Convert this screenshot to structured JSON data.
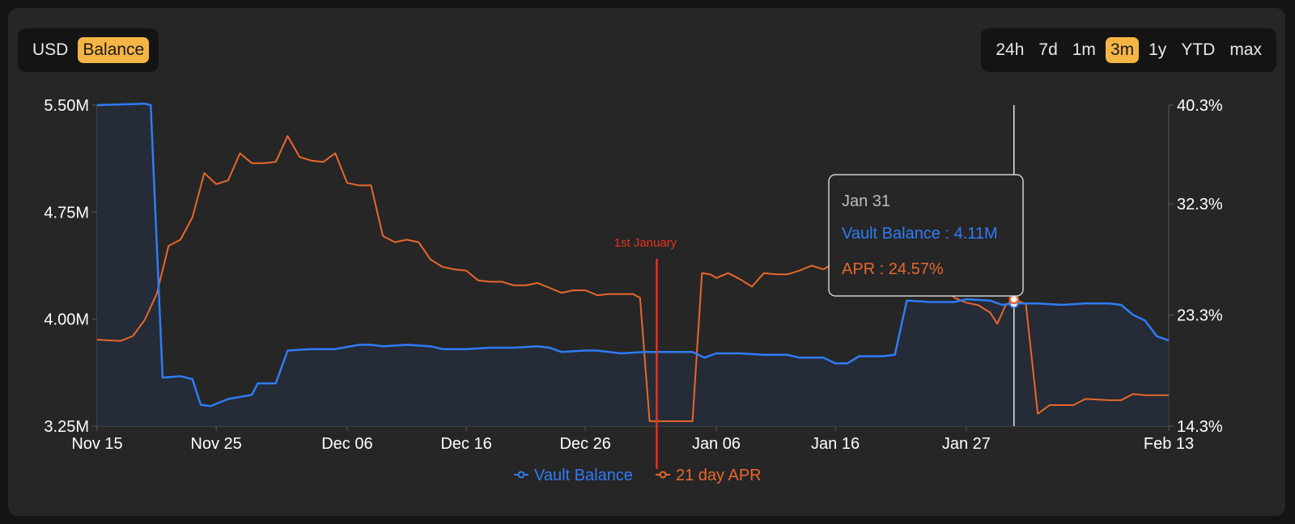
{
  "unit_toggle": {
    "options": [
      "USD",
      "Balance"
    ],
    "selected": "Balance",
    "accent": "#f5b545"
  },
  "range_toggle": {
    "options": [
      "24h",
      "7d",
      "1m",
      "3m",
      "1y",
      "YTD",
      "max"
    ],
    "selected": "3m"
  },
  "colors": {
    "balance": "#2f7cf6",
    "apr": "#e8672c",
    "annotation": "#e8321f",
    "area": "#252b37"
  },
  "tooltip": {
    "date": "Jan 31",
    "balance_text": "Vault Balance : 4.11M",
    "apr_text": "APR : 24.57%"
  },
  "chart_data": {
    "type": "line",
    "x_start": "2023-11-15",
    "x_end": "2024-02-13",
    "x_ticks": [
      {
        "date": "2023-11-15",
        "label": "Nov 15"
      },
      {
        "date": "2023-11-25",
        "label": "Nov 25"
      },
      {
        "date": "2023-12-06",
        "label": "Dec 06"
      },
      {
        "date": "2023-12-16",
        "label": "Dec 16"
      },
      {
        "date": "2023-12-26",
        "label": "Dec 26"
      },
      {
        "date": "2024-01-06",
        "label": "Jan 06"
      },
      {
        "date": "2024-01-16",
        "label": "Jan 16"
      },
      {
        "date": "2024-01-27",
        "label": "Jan 27"
      },
      {
        "date": "2024-02-13",
        "label": "Feb 13"
      }
    ],
    "y_left": {
      "min": 3.25,
      "max": 5.5,
      "ticks": [
        {
          "v": 5.5,
          "label": "5.50M"
        },
        {
          "v": 4.75,
          "label": "4.75M"
        },
        {
          "v": 4.0,
          "label": "4.00M"
        },
        {
          "v": 3.25,
          "label": "3.25M"
        }
      ]
    },
    "y_right": {
      "min": 14.3,
      "max": 40.3,
      "ticks": [
        {
          "v": 40.3,
          "label": "40.3%"
        },
        {
          "v": 32.3,
          "label": "32.3%"
        },
        {
          "v": 23.3,
          "label": "23.3%"
        },
        {
          "v": 14.3,
          "label": "14.3%"
        }
      ]
    },
    "annotation": {
      "date": "2024-01-01",
      "label": "1st January"
    },
    "hover_date": "2024-01-31",
    "series": [
      {
        "name": "Vault Balance",
        "axis": "left",
        "area": true,
        "points": [
          [
            "2023-11-15",
            5.5
          ],
          [
            "2023-11-19",
            5.51
          ],
          [
            "2023-11-19.5",
            5.5
          ],
          [
            "2023-11-20.5",
            3.59
          ],
          [
            "2023-11-22",
            3.6
          ],
          [
            "2023-11-23",
            3.58
          ],
          [
            "2023-11-23.7",
            3.4
          ],
          [
            "2023-11-24.5",
            3.39
          ],
          [
            "2023-11-26",
            3.44
          ],
          [
            "2023-11-28",
            3.47
          ],
          [
            "2023-11-28.5",
            3.55
          ],
          [
            "2023-11-30",
            3.55
          ],
          [
            "2023-12-01",
            3.78
          ],
          [
            "2023-12-03",
            3.79
          ],
          [
            "2023-12-05",
            3.79
          ],
          [
            "2023-12-07",
            3.82
          ],
          [
            "2023-12-08",
            3.82
          ],
          [
            "2023-12-09",
            3.81
          ],
          [
            "2023-12-11",
            3.82
          ],
          [
            "2023-12-13",
            3.81
          ],
          [
            "2023-12-14",
            3.79
          ],
          [
            "2023-12-16",
            3.79
          ],
          [
            "2023-12-18",
            3.8
          ],
          [
            "2023-12-20",
            3.8
          ],
          [
            "2023-12-22",
            3.81
          ],
          [
            "2023-12-23",
            3.8
          ],
          [
            "2023-12-24",
            3.77
          ],
          [
            "2023-12-26",
            3.78
          ],
          [
            "2023-12-27",
            3.78
          ],
          [
            "2023-12-29",
            3.76
          ],
          [
            "2023-12-31",
            3.77
          ],
          [
            "2024-01-02",
            3.77
          ],
          [
            "2024-01-04",
            3.77
          ],
          [
            "2024-01-05",
            3.73
          ],
          [
            "2024-01-06",
            3.76
          ],
          [
            "2024-01-08",
            3.76
          ],
          [
            "2024-01-10",
            3.75
          ],
          [
            "2024-01-12",
            3.75
          ],
          [
            "2024-01-13",
            3.73
          ],
          [
            "2024-01-15",
            3.73
          ],
          [
            "2024-01-16",
            3.69
          ],
          [
            "2024-01-17",
            3.69
          ],
          [
            "2024-01-18",
            3.74
          ],
          [
            "2024-01-20",
            3.74
          ],
          [
            "2024-01-21",
            3.75
          ],
          [
            "2024-01-22",
            4.13
          ],
          [
            "2024-01-24",
            4.12
          ],
          [
            "2024-01-26",
            4.12
          ],
          [
            "2024-01-27",
            4.14
          ],
          [
            "2024-01-29",
            4.13
          ],
          [
            "2024-01-30",
            4.1
          ],
          [
            "2024-01-31",
            4.11
          ],
          [
            "2024-02-02",
            4.11
          ],
          [
            "2024-02-04",
            4.1
          ],
          [
            "2024-02-06",
            4.11
          ],
          [
            "2024-02-08",
            4.11
          ],
          [
            "2024-02-09",
            4.1
          ],
          [
            "2024-02-10",
            4.03
          ],
          [
            "2024-02-11",
            3.99
          ],
          [
            "2024-02-12",
            3.88
          ],
          [
            "2024-02-13",
            3.85
          ]
        ]
      },
      {
        "name": "21 day APR",
        "axis": "right",
        "area": false,
        "points": [
          [
            "2023-11-15",
            21.3
          ],
          [
            "2023-11-17",
            21.2
          ],
          [
            "2023-11-18",
            21.6
          ],
          [
            "2023-11-19",
            22.9
          ],
          [
            "2023-11-20",
            25.0
          ],
          [
            "2023-11-21",
            28.9
          ],
          [
            "2023-11-22",
            29.4
          ],
          [
            "2023-11-23",
            31.2
          ],
          [
            "2023-11-24",
            34.8
          ],
          [
            "2023-11-25",
            33.9
          ],
          [
            "2023-11-26",
            34.2
          ],
          [
            "2023-11-27",
            36.4
          ],
          [
            "2023-11-28",
            35.6
          ],
          [
            "2023-11-29",
            35.6
          ],
          [
            "2023-11-30",
            35.7
          ],
          [
            "2023-12-01",
            37.8
          ],
          [
            "2023-12-02",
            36.1
          ],
          [
            "2023-12-03",
            35.8
          ],
          [
            "2023-12-04",
            35.7
          ],
          [
            "2023-12-05",
            36.4
          ],
          [
            "2023-12-06",
            34.0
          ],
          [
            "2023-12-07",
            33.8
          ],
          [
            "2023-12-08",
            33.8
          ],
          [
            "2023-12-09",
            29.7
          ],
          [
            "2023-12-10",
            29.2
          ],
          [
            "2023-12-11",
            29.4
          ],
          [
            "2023-12-12",
            29.2
          ],
          [
            "2023-12-13",
            27.8
          ],
          [
            "2023-12-14",
            27.2
          ],
          [
            "2023-12-15",
            27.0
          ],
          [
            "2023-12-16",
            26.9
          ],
          [
            "2023-12-17",
            26.1
          ],
          [
            "2023-12-18",
            26.0
          ],
          [
            "2023-12-19",
            26.0
          ],
          [
            "2023-12-20",
            25.7
          ],
          [
            "2023-12-21",
            25.7
          ],
          [
            "2023-12-22",
            25.9
          ],
          [
            "2023-12-23",
            25.5
          ],
          [
            "2023-12-24",
            25.1
          ],
          [
            "2023-12-25",
            25.3
          ],
          [
            "2023-12-26",
            25.3
          ],
          [
            "2023-12-27",
            24.9
          ],
          [
            "2023-12-28",
            25.0
          ],
          [
            "2023-12-29",
            25.0
          ],
          [
            "2023-12-30",
            25.0
          ],
          [
            "2023-12-30.6",
            24.7
          ],
          [
            "2023-12-31.4",
            14.7
          ],
          [
            "2024-01-04",
            14.7
          ],
          [
            "2024-01-04.8",
            26.7
          ],
          [
            "2024-01-05.5",
            26.6
          ],
          [
            "2024-01-06",
            26.3
          ],
          [
            "2024-01-07",
            26.7
          ],
          [
            "2024-01-08",
            26.2
          ],
          [
            "2024-01-09",
            25.6
          ],
          [
            "2024-01-10",
            26.7
          ],
          [
            "2024-01-11",
            26.6
          ],
          [
            "2024-01-12",
            26.6
          ],
          [
            "2024-01-13",
            26.9
          ],
          [
            "2024-01-14",
            27.3
          ],
          [
            "2024-01-15",
            27.0
          ],
          [
            "2024-01-16",
            27.6
          ],
          [
            "2024-01-17",
            27.6
          ],
          [
            "2024-01-18",
            27.4
          ],
          [
            "2024-01-19",
            27.8
          ],
          [
            "2024-01-20",
            27.3
          ],
          [
            "2024-01-21",
            27.5
          ],
          [
            "2024-01-22",
            27.2
          ],
          [
            "2024-01-23",
            26.9
          ],
          [
            "2024-01-24",
            26.3
          ],
          [
            "2024-01-25",
            25.6
          ],
          [
            "2024-01-26",
            24.7
          ],
          [
            "2024-01-27",
            24.3
          ],
          [
            "2024-01-28",
            24.1
          ],
          [
            "2024-01-29",
            23.5
          ],
          [
            "2024-01-29.6",
            22.6
          ],
          [
            "2024-01-30.3",
            24.1
          ],
          [
            "2024-01-31",
            24.57
          ],
          [
            "2024-02-01",
            24.2
          ],
          [
            "2024-02-02",
            15.3
          ],
          [
            "2024-02-03",
            16.0
          ],
          [
            "2024-02-05",
            16.0
          ],
          [
            "2024-02-06",
            16.5
          ],
          [
            "2024-02-08",
            16.4
          ],
          [
            "2024-02-09",
            16.4
          ],
          [
            "2024-02-10",
            16.9
          ],
          [
            "2024-02-11",
            16.8
          ],
          [
            "2024-02-13",
            16.8
          ]
        ]
      }
    ]
  }
}
